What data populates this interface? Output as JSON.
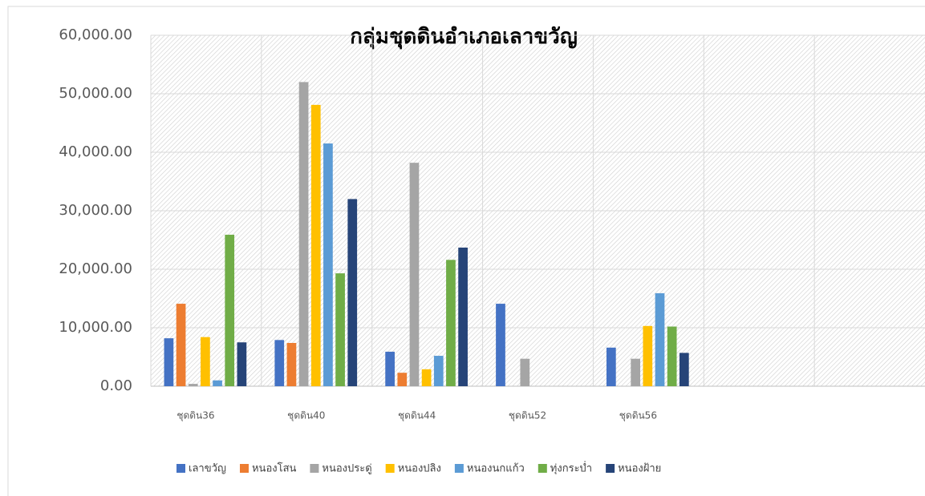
{
  "chart_data": {
    "type": "bar",
    "title": "กลุ่มชุดดินอำเภอเลาขวัญ",
    "categories": [
      "ชุดดิน36",
      "ชุดดิน40",
      "ชุดดิน44",
      "ชุดดิน52",
      "ชุดดิน56",
      null,
      null
    ],
    "series": [
      {
        "name": "เลาขวัญ",
        "color": "#4472c4",
        "values": [
          8200,
          7900,
          5900,
          14100,
          6600,
          null,
          null
        ]
      },
      {
        "name": "หนองโสน",
        "color": "#ed7d31",
        "values": [
          14100,
          7400,
          2300,
          null,
          null,
          null,
          null
        ]
      },
      {
        "name": "หนองประดู่",
        "color": "#a5a5a5",
        "values": [
          400,
          52000,
          38200,
          4700,
          4700,
          null,
          null
        ]
      },
      {
        "name": "หนองปลิง",
        "color": "#ffc000",
        "values": [
          8400,
          48100,
          2900,
          null,
          10300,
          null,
          null
        ]
      },
      {
        "name": "หนองนกแก้ว",
        "color": "#5b9bd5",
        "values": [
          1000,
          41500,
          5200,
          null,
          15900,
          null,
          null
        ]
      },
      {
        "name": "ทุ่งกระบ่ำ",
        "color": "#70ad47",
        "values": [
          25900,
          19300,
          21600,
          null,
          10200,
          null,
          null
        ]
      },
      {
        "name": "หนองฝ้าย",
        "color": "#264478",
        "values": [
          7500,
          32000,
          23700,
          null,
          5700,
          null,
          null
        ]
      }
    ],
    "ylim": [
      0,
      60000
    ],
    "yticks": [
      {
        "value": 0,
        "label": "0.00"
      },
      {
        "value": 10000,
        "label": "10,000.00"
      },
      {
        "value": 20000,
        "label": "20,000.00"
      },
      {
        "value": 30000,
        "label": "30,000.00"
      },
      {
        "value": 40000,
        "label": "40,000.00"
      },
      {
        "value": 50000,
        "label": "50,000.00"
      },
      {
        "value": 60000,
        "label": "60,000.00"
      }
    ],
    "grid": true,
    "legend": "bottom"
  }
}
